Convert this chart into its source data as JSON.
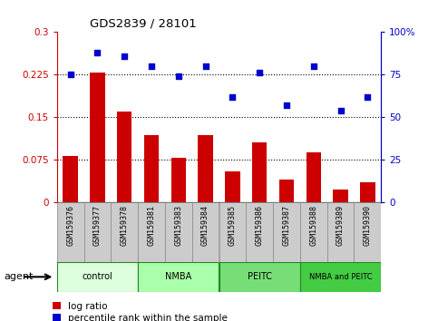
{
  "title": "GDS2839 / 28101",
  "samples": [
    "GSM159376",
    "GSM159377",
    "GSM159378",
    "GSM159381",
    "GSM159383",
    "GSM159384",
    "GSM159385",
    "GSM159386",
    "GSM159387",
    "GSM159388",
    "GSM159389",
    "GSM159390"
  ],
  "log_ratio": [
    0.082,
    0.228,
    0.16,
    0.118,
    0.078,
    0.118,
    0.055,
    0.105,
    0.04,
    0.088,
    0.022,
    0.035
  ],
  "percentile_rank": [
    75,
    88,
    86,
    80,
    74,
    80,
    62,
    76,
    57,
    80,
    54,
    62
  ],
  "groups": [
    {
      "label": "control",
      "start": 0,
      "end": 3,
      "color": "#ccffcc"
    },
    {
      "label": "NMBA",
      "start": 3,
      "end": 6,
      "color": "#99ee99"
    },
    {
      "label": "PEITC",
      "start": 6,
      "end": 9,
      "color": "#88dd88"
    },
    {
      "label": "NMBA and PEITC",
      "start": 9,
      "end": 12,
      "color": "#66cc66"
    }
  ],
  "bar_color": "#cc0000",
  "dot_color": "#0000cc",
  "left_ylim": [
    0,
    0.3
  ],
  "right_ylim": [
    0,
    100
  ],
  "left_yticks": [
    0,
    0.075,
    0.15,
    0.225,
    0.3
  ],
  "left_yticklabels": [
    "0",
    "0.075",
    "0.15",
    "0.225",
    "0.3"
  ],
  "right_yticks": [
    0,
    25,
    50,
    75,
    100
  ],
  "right_yticklabels": [
    "0",
    "25",
    "50",
    "75",
    "100%"
  ],
  "hlines": [
    0.075,
    0.15,
    0.225
  ],
  "agent_label": "agent",
  "legend_bar_label": "log ratio",
  "legend_dot_label": "percentile rank within the sample",
  "plot_bg": "#ffffff",
  "gray_box_color": "#cccccc",
  "group_colors": [
    "#ddffdd",
    "#aaffaa",
    "#77dd77",
    "#44cc44"
  ],
  "group_border_color": "#228822"
}
